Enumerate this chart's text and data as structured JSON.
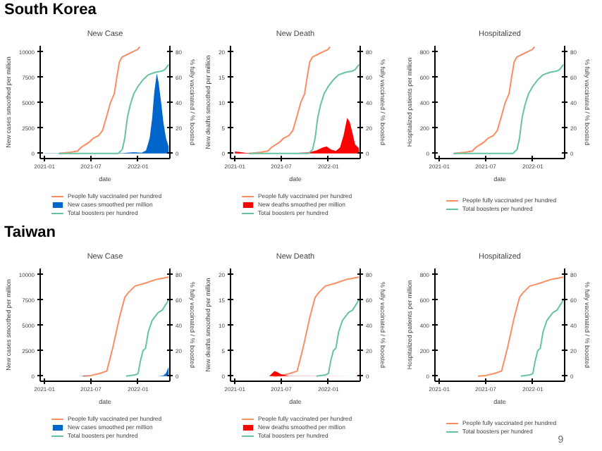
{
  "chart_data": [
    {
      "type": "line",
      "title": "New Case",
      "annotations": [
        "South Korea"
      ],
      "xlabel": "date",
      "ylabel": "New cases smoothed per million",
      "y2label": "% fully vaccinated / % boosted",
      "xlim": [
        "2020-12-15",
        "2022-05-05"
      ],
      "xticks": [
        "2021-01",
        "2021-07",
        "2022-01"
      ],
      "ylim": [
        -500,
        10600
      ],
      "yticks": [
        0,
        2500,
        5000,
        7500,
        10000
      ],
      "y2lim": [
        -4,
        84.8
      ],
      "y2ticks": [
        0,
        20,
        40,
        60,
        80
      ],
      "grid": false,
      "legend": "bottom",
      "line_style": "solid",
      "series": [
        {
          "name": "People fully vaccinated per hundred",
          "color": "#fc8d62",
          "axis": "y2",
          "x": [
            "2021-02-26",
            "2021-04-15",
            "2021-05-10",
            "2021-05-25",
            "2021-06-10",
            "2021-06-25",
            "2021-07-10",
            "2021-07-30",
            "2021-08-15",
            "2021-08-31",
            "2021-09-15",
            "2021-09-30",
            "2021-10-10",
            "2021-10-20",
            "2021-10-31",
            "2021-11-20",
            "2021-12-10",
            "2021-12-31",
            "2022-01-07"
          ],
          "values": [
            0,
            1,
            2,
            5,
            7,
            9,
            12,
            14,
            18,
            29,
            40,
            47,
            60,
            72,
            76,
            78,
            80,
            82,
            84
          ]
        },
        {
          "name": "New cases smoothed per million",
          "type": "area",
          "color": "#0066cc",
          "x": [
            "2021-01-01",
            "2021-07-15",
            "2021-11-01",
            "2021-12-15",
            "2022-01-15",
            "2022-02-01",
            "2022-02-15",
            "2022-02-25",
            "2022-03-05",
            "2022-03-15",
            "2022-03-22",
            "2022-04-01",
            "2022-04-10",
            "2022-04-20",
            "2022-04-30"
          ],
          "values": [
            15,
            30,
            40,
            130,
            80,
            300,
            1500,
            3500,
            6000,
            7900,
            7000,
            5000,
            3000,
            1500,
            700
          ]
        },
        {
          "name": "Total boosters per hundred",
          "color": "#66c2a5",
          "axis": "y2",
          "x": [
            "2021-02-26",
            "2021-10-15",
            "2021-10-31",
            "2021-11-10",
            "2021-11-20",
            "2021-12-01",
            "2021-12-15",
            "2022-01-01",
            "2022-01-20",
            "2022-02-10",
            "2022-03-10",
            "2022-04-05",
            "2022-04-15",
            "2022-04-30"
          ],
          "values": [
            0,
            0,
            3,
            12,
            28,
            38,
            47,
            53,
            58,
            62,
            64,
            65,
            66,
            70
          ]
        }
      ]
    },
    {
      "type": "line",
      "title": "New Death",
      "xlabel": "date",
      "ylabel": "New deaths smoothed per million",
      "y2label": "% fully vaccinated / % boosted",
      "xlim": [
        "2020-12-15",
        "2022-05-05"
      ],
      "xticks": [
        "2021-01",
        "2021-07",
        "2022-01"
      ],
      "ylim": [
        -1,
        21.2
      ],
      "yticks": [
        0,
        5,
        10,
        15,
        20
      ],
      "y2lim": [
        -4,
        84.8
      ],
      "y2ticks": [
        0,
        20,
        40,
        60,
        80
      ],
      "grid": false,
      "legend": "bottom",
      "line_style": "solid",
      "series": [
        {
          "name": "People fully vaccinated per hundred",
          "color": "#fc8d62",
          "axis": "y2",
          "x": [
            "2021-02-26",
            "2021-04-15",
            "2021-05-10",
            "2021-05-25",
            "2021-06-10",
            "2021-06-25",
            "2021-07-10",
            "2021-07-30",
            "2021-08-15",
            "2021-08-31",
            "2021-09-15",
            "2021-09-30",
            "2021-10-10",
            "2021-10-20",
            "2021-10-31",
            "2021-11-20",
            "2021-12-10",
            "2021-12-31",
            "2022-01-07"
          ],
          "values": [
            0,
            1,
            2,
            5,
            7,
            9,
            12,
            14,
            18,
            29,
            40,
            47,
            60,
            72,
            76,
            78,
            80,
            82,
            84
          ]
        },
        {
          "name": "New deaths smoothed per million",
          "type": "area",
          "color": "#ff0000",
          "x": [
            "2021-01-01",
            "2021-01-20",
            "2021-02-15",
            "2021-05-01",
            "2021-09-01",
            "2021-10-15",
            "2021-11-15",
            "2021-12-10",
            "2021-12-25",
            "2022-01-10",
            "2022-01-30",
            "2022-02-15",
            "2022-03-01",
            "2022-03-15",
            "2022-03-25",
            "2022-04-05",
            "2022-04-15",
            "2022-04-30"
          ],
          "values": [
            0.4,
            0.3,
            0.1,
            0.05,
            0.1,
            0.2,
            0.6,
            1.2,
            1.4,
            0.8,
            0.5,
            1.2,
            3.5,
            7.0,
            6.2,
            4.0,
            1.8,
            1.0
          ]
        },
        {
          "name": "Total boosters per hundred",
          "color": "#66c2a5",
          "axis": "y2",
          "x": [
            "2021-02-26",
            "2021-10-15",
            "2021-10-31",
            "2021-11-10",
            "2021-11-20",
            "2021-12-01",
            "2021-12-15",
            "2022-01-01",
            "2022-01-20",
            "2022-02-10",
            "2022-03-10",
            "2022-04-05",
            "2022-04-15",
            "2022-04-30"
          ],
          "values": [
            0,
            0,
            3,
            12,
            28,
            38,
            47,
            53,
            58,
            62,
            64,
            65,
            66,
            70
          ]
        }
      ]
    },
    {
      "type": "line",
      "title": "Hospitalized",
      "xlabel": "date",
      "ylabel": "Hospitalized patients per million",
      "y2label": "% fully vaccinated / % boosted",
      "xlim": [
        "2020-12-15",
        "2022-05-05"
      ],
      "xticks": [
        "2021-01",
        "2021-07",
        "2022-01"
      ],
      "ylim": [
        -40,
        848
      ],
      "yticks": [
        0,
        200,
        400,
        600,
        800
      ],
      "y2lim": [
        -4,
        84.8
      ],
      "y2ticks": [
        0,
        20,
        40,
        60,
        80
      ],
      "grid": false,
      "legend": "bottom",
      "line_style": "solid",
      "series": [
        {
          "name": "People fully vaccinated per hundred",
          "color": "#fc8d62",
          "axis": "y2",
          "x": [
            "2021-02-26",
            "2021-04-15",
            "2021-05-10",
            "2021-05-25",
            "2021-06-10",
            "2021-06-25",
            "2021-07-10",
            "2021-07-30",
            "2021-08-15",
            "2021-08-31",
            "2021-09-15",
            "2021-09-30",
            "2021-10-10",
            "2021-10-20",
            "2021-10-31",
            "2021-11-20",
            "2021-12-10",
            "2021-12-31",
            "2022-01-07"
          ],
          "values": [
            0,
            1,
            2,
            5,
            7,
            9,
            12,
            14,
            18,
            29,
            40,
            47,
            60,
            72,
            76,
            78,
            80,
            82,
            84
          ]
        },
        {
          "name": "Total boosters per hundred",
          "color": "#66c2a5",
          "axis": "y2",
          "x": [
            "2021-02-26",
            "2021-10-15",
            "2021-10-31",
            "2021-11-10",
            "2021-11-20",
            "2021-12-01",
            "2021-12-15",
            "2022-01-01",
            "2022-01-20",
            "2022-02-10",
            "2022-03-10",
            "2022-04-05",
            "2022-04-15",
            "2022-04-30"
          ],
          "values": [
            0,
            0,
            3,
            12,
            28,
            38,
            47,
            53,
            58,
            62,
            64,
            65,
            66,
            70
          ]
        }
      ]
    },
    {
      "type": "line",
      "title": "New Case",
      "annotations": [
        "Taiwan"
      ],
      "xlabel": "date",
      "ylabel": "New cases smoothed per million",
      "y2label": "% fully vaccinated / % boosted",
      "xlim": [
        "2020-12-15",
        "2022-05-05"
      ],
      "xticks": [
        "2021-01",
        "2021-07",
        "2022-01"
      ],
      "ylim": [
        -500,
        10600
      ],
      "yticks": [
        0,
        2500,
        5000,
        7500,
        10000
      ],
      "y2lim": [
        -4,
        84.8
      ],
      "y2ticks": [
        0,
        20,
        40,
        60,
        80
      ],
      "grid": false,
      "legend": "bottom",
      "line_style": "solid",
      "series": [
        {
          "name": "People fully vaccinated per hundred",
          "color": "#fc8d62",
          "axis": "y2",
          "x": [
            "2021-06-01",
            "2021-07-01",
            "2021-08-01",
            "2021-09-01",
            "2021-09-25",
            "2021-10-20",
            "2021-11-10",
            "2021-11-25",
            "2021-12-20",
            "2022-01-25",
            "2022-03-10",
            "2022-04-30"
          ],
          "values": [
            0,
            0.5,
            2,
            4,
            23,
            46,
            62,
            66,
            71,
            73,
            76,
            78
          ]
        },
        {
          "name": "New cases smoothed per million",
          "type": "area",
          "color": "#0066cc",
          "x": [
            "2021-05-15",
            "2021-06-01",
            "2021-07-01",
            "2021-08-01",
            "2022-03-20",
            "2022-04-10",
            "2022-04-20",
            "2022-04-30"
          ],
          "values": [
            5,
            40,
            10,
            1,
            10,
            80,
            300,
            900
          ]
        },
        {
          "name": "Total boosters per hundred",
          "color": "#66c2a5",
          "axis": "y2",
          "x": [
            "2021-11-15",
            "2021-12-20",
            "2022-01-01",
            "2022-01-10",
            "2022-01-20",
            "2022-01-30",
            "2022-02-10",
            "2022-02-25",
            "2022-03-20",
            "2022-04-05",
            "2022-04-30"
          ],
          "values": [
            0,
            1,
            2,
            12,
            20,
            22,
            35,
            44,
            50,
            52,
            60
          ]
        }
      ]
    },
    {
      "type": "line",
      "title": "New Death",
      "xlabel": "date",
      "ylabel": "New deaths smoothed per million",
      "y2label": "% fully vaccinated / % boosted",
      "xlim": [
        "2020-12-15",
        "2022-05-05"
      ],
      "xticks": [
        "2021-01",
        "2021-07",
        "2022-01"
      ],
      "ylim": [
        -1,
        21.2
      ],
      "yticks": [
        0,
        5,
        10,
        15,
        20
      ],
      "y2lim": [
        -4,
        84.8
      ],
      "y2ticks": [
        0,
        20,
        40,
        60,
        80
      ],
      "grid": false,
      "legend": "bottom",
      "line_style": "solid",
      "series": [
        {
          "name": "People fully vaccinated per hundred",
          "color": "#fc8d62",
          "axis": "y2",
          "x": [
            "2021-06-01",
            "2021-07-01",
            "2021-08-01",
            "2021-09-01",
            "2021-09-25",
            "2021-10-20",
            "2021-11-10",
            "2021-11-25",
            "2021-12-20",
            "2022-01-25",
            "2022-03-10",
            "2022-04-30"
          ],
          "values": [
            0,
            0.5,
            2,
            4,
            23,
            46,
            62,
            66,
            71,
            73,
            76,
            78
          ]
        },
        {
          "name": "New deaths smoothed per million",
          "type": "area",
          "color": "#ff0000",
          "x": [
            "2021-05-15",
            "2021-05-25",
            "2021-06-05",
            "2021-06-15",
            "2021-06-30",
            "2021-07-15",
            "2021-08-01",
            "2022-04-20",
            "2022-04-25",
            "2022-04-30"
          ],
          "values": [
            0,
            0.5,
            1.0,
            0.8,
            0.4,
            0.2,
            0.05,
            0,
            0.2,
            0.3
          ]
        },
        {
          "name": "Total boosters per hundred",
          "color": "#66c2a5",
          "axis": "y2",
          "x": [
            "2021-11-15",
            "2021-12-20",
            "2022-01-01",
            "2022-01-10",
            "2022-01-20",
            "2022-01-30",
            "2022-02-10",
            "2022-02-25",
            "2022-03-20",
            "2022-04-05",
            "2022-04-30"
          ],
          "values": [
            0,
            1,
            2,
            12,
            20,
            22,
            35,
            44,
            50,
            52,
            60
          ]
        }
      ]
    },
    {
      "type": "line",
      "title": "Hospitalized",
      "annotations": [
        "9"
      ],
      "xlabel": "date",
      "ylabel": "Hospitalized patients per million",
      "y2label": "% fully vaccinated / % boosted",
      "xlim": [
        "2020-12-15",
        "2022-05-05"
      ],
      "xticks": [
        "2021-01",
        "2021-07",
        "2022-01"
      ],
      "ylim": [
        -40,
        848
      ],
      "yticks": [
        0,
        200,
        400,
        600,
        800
      ],
      "y2lim": [
        -4,
        84.8
      ],
      "y2ticks": [
        0,
        20,
        40,
        60,
        80
      ],
      "grid": false,
      "legend": "bottom",
      "line_style": "solid",
      "series": [
        {
          "name": "People fully vaccinated per hundred",
          "color": "#fc8d62",
          "axis": "y2",
          "x": [
            "2021-06-01",
            "2021-07-01",
            "2021-08-01",
            "2021-09-01",
            "2021-09-25",
            "2021-10-20",
            "2021-11-10",
            "2021-11-25",
            "2021-12-20",
            "2022-01-25",
            "2022-03-10",
            "2022-04-30"
          ],
          "values": [
            0,
            0.5,
            2,
            4,
            23,
            46,
            62,
            66,
            71,
            73,
            76,
            78
          ]
        },
        {
          "name": "Total boosters per hundred",
          "color": "#66c2a5",
          "axis": "y2",
          "x": [
            "2021-11-15",
            "2021-12-20",
            "2022-01-01",
            "2022-01-10",
            "2022-01-20",
            "2022-01-30",
            "2022-02-10",
            "2022-02-25",
            "2022-03-20",
            "2022-04-05",
            "2022-04-30"
          ],
          "values": [
            0,
            1,
            2,
            12,
            20,
            22,
            35,
            44,
            50,
            52,
            60
          ]
        }
      ]
    }
  ]
}
